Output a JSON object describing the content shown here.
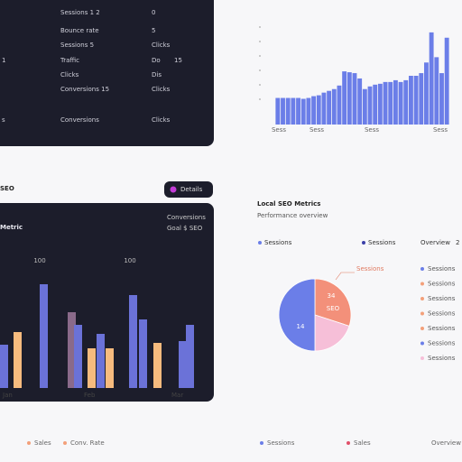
{
  "table": {
    "rows": [
      [
        "Sessions 1 2",
        "0"
      ],
      [
        "Bounce rate",
        "5"
      ],
      [
        "Sessions 5",
        "Clicks"
      ],
      [
        "Traffic",
        "Do",
        "15"
      ],
      [
        "Clicks",
        "Dis"
      ],
      [
        "Conversions 15",
        "Clicks"
      ],
      [
        "Conversions",
        "Clicks"
      ]
    ],
    "stubs": [
      "1",
      "s"
    ]
  },
  "traffic_chart": {
    "type": "bar",
    "color": "#6b7ee8",
    "ylim": [
      0,
      110
    ],
    "values": [
      30,
      30,
      30,
      30,
      30,
      29,
      30,
      32,
      33,
      36,
      38,
      40,
      44,
      60,
      59,
      58,
      52,
      40,
      43,
      45,
      46,
      48,
      48,
      50,
      48,
      50,
      55,
      55,
      58,
      70,
      104,
      76,
      58,
      98
    ],
    "x_labels": [
      "Sess",
      "Sess",
      "Sess",
      "Sess"
    ]
  },
  "section": {
    "title": "SEO",
    "button": "Details"
  },
  "metric_chart": {
    "type": "bar",
    "title": "Metric",
    "note": [
      "Conversions",
      "Goal $ SEO"
    ],
    "ylim": [
      0,
      150
    ],
    "bars": [
      {
        "value": 48,
        "color": "#6b72d8"
      },
      {
        "value": 62,
        "color": "#f6bb7e"
      },
      {
        "value": 115,
        "color": "#6b72d8"
      },
      {
        "value": 84,
        "color": "#8a6a8a"
      },
      {
        "value": 70,
        "color": "#6b72d8"
      },
      {
        "value": 44,
        "color": "#f6bb7e"
      },
      {
        "value": 60,
        "color": "#6b72d8"
      },
      {
        "value": 44,
        "color": "#f6bb7e"
      },
      {
        "value": 103,
        "color": "#6b72d8"
      },
      {
        "value": 76,
        "color": "#6b72d8"
      },
      {
        "value": 50,
        "color": "#f6bb7e"
      },
      {
        "value": 52,
        "color": "#6b72d8"
      },
      {
        "value": 70,
        "color": "#6b72d8"
      }
    ],
    "categories": [
      "Jan",
      "Feb",
      "Mar"
    ],
    "value_labels": [
      "100",
      "100"
    ]
  },
  "pie_panel": {
    "title": "Local SEO Metrics",
    "subtitle": "Performance overview",
    "legend_top": [
      "Sessions",
      "Sessions",
      "Overview",
      "2"
    ],
    "pie": {
      "type": "pie",
      "values": [
        30,
        20,
        50
      ],
      "colors": [
        "#f3907a",
        "#f6bfd8",
        "#6b7ee8"
      ],
      "labels": [
        "34",
        "SEO",
        "14"
      ],
      "callout": "Sessions"
    },
    "legend": [
      {
        "name": "Sessions",
        "color": "#6b7ee8"
      },
      {
        "name": "Sessions",
        "color": "#f3a07a"
      },
      {
        "name": "Sessions",
        "color": "#f3a07a"
      },
      {
        "name": "Sessions",
        "color": "#f3a07a"
      },
      {
        "name": "Sessions",
        "color": "#f3a07a"
      },
      {
        "name": "Sessions",
        "color": "#6b7ee8"
      },
      {
        "name": "Sessions",
        "color": "#f6bfd8"
      }
    ]
  },
  "footer": [
    {
      "name": "Sales",
      "color": "#f3a07a"
    },
    {
      "name": "Conv. Rate",
      "color": "#f3a07a"
    },
    {
      "name": "Sessions",
      "color": "#6b7ee8"
    },
    {
      "name": "Sales",
      "color": "#e0506a"
    },
    {
      "name": "Overview",
      "color": "#ffffff"
    }
  ]
}
